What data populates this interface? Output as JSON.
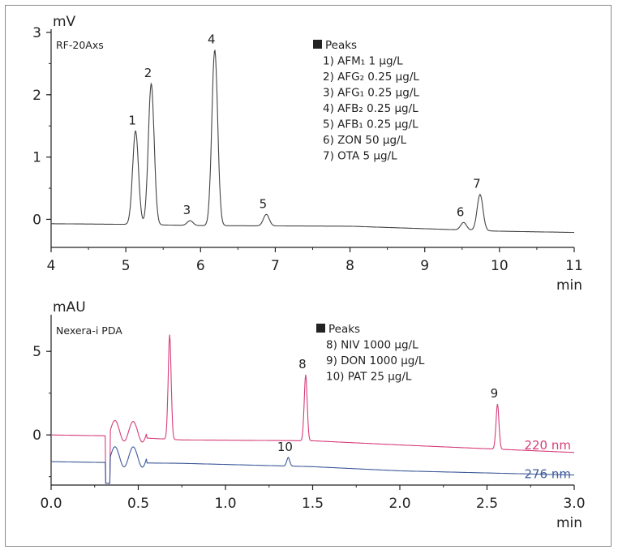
{
  "chart_data": [
    {
      "type": "line",
      "instrument_label": "RF-20Axs",
      "ylabel": "mV",
      "xlabel": "min",
      "xlim": [
        4,
        11
      ],
      "ylim": [
        -0.45,
        3
      ],
      "x_ticks": [
        "4",
        "5",
        "6",
        "7",
        "8",
        "9",
        "10",
        "11"
      ],
      "y_ticks": [
        "0",
        "1",
        "2",
        "3"
      ],
      "legend_title": "Peaks",
      "legend_position": "top-center",
      "legend": [
        "1) AFM₁ 1 µg/L",
        "2) AFG₂ 0.25 µg/L",
        "3) AFG₁ 0.25 µg/L",
        "4) AFB₂ 0.25 µg/L",
        "5) AFB₁ 0.25 µg/L",
        "6) ZON  50 µg/L",
        "7) OTA  5 µg/L"
      ],
      "series": [
        {
          "color": "#444444",
          "baseline": [
            [
              4.0,
              -0.07
            ],
            [
              5.0,
              -0.08
            ],
            [
              6.0,
              -0.1
            ],
            [
              8.0,
              -0.11
            ],
            [
              10.0,
              -0.19
            ],
            [
              11.0,
              -0.21
            ]
          ],
          "peaks": [
            {
              "label": "1",
              "x": 5.13,
              "y": 1.42
            },
            {
              "label": "2",
              "x": 5.34,
              "y": 2.18
            },
            {
              "label": "3",
              "x": 5.86,
              "y": -0.02
            },
            {
              "label": "4",
              "x": 6.19,
              "y": 2.72
            },
            {
              "label": "5",
              "x": 6.88,
              "y": 0.08
            },
            {
              "label": "6",
              "x": 9.52,
              "y": -0.05
            },
            {
              "label": "7",
              "x": 9.74,
              "y": 0.4
            }
          ]
        }
      ]
    },
    {
      "type": "line",
      "instrument_label": "Nexera-i PDA",
      "ylabel": "mAU",
      "xlabel": "min",
      "xlim": [
        0.0,
        3.0
      ],
      "ylim": [
        -3.0,
        7.0
      ],
      "x_ticks": [
        "0.0",
        "0.5",
        "1.0",
        "1.5",
        "2.0",
        "2.5",
        "3.0"
      ],
      "y_ticks": [
        "0",
        "5"
      ],
      "legend_title": "Peaks",
      "legend_position": "top-center",
      "legend": [
        "8) NIV   1000 µg/L",
        "9) DON  1000 µg/L",
        "10) PAT   25 µg/L"
      ],
      "series": [
        {
          "name": "220 nm",
          "color": "#d63d7a",
          "baseline": [
            [
              0.0,
              0.0
            ],
            [
              0.3,
              -0.05
            ],
            [
              0.75,
              -0.3
            ],
            [
              1.5,
              -0.35
            ],
            [
              2.0,
              -0.6
            ],
            [
              3.0,
              -1.05
            ]
          ],
          "peaks": [
            {
              "label": "",
              "x": 0.68,
              "y": 6.0
            },
            {
              "label": "8",
              "x": 1.46,
              "y": 3.6
            },
            {
              "label": "9",
              "x": 2.56,
              "y": 1.85
            }
          ]
        },
        {
          "name": "276 nm",
          "color": "#3d5a99",
          "baseline": [
            [
              0.0,
              -1.6
            ],
            [
              0.3,
              -1.65
            ],
            [
              0.75,
              -1.7
            ],
            [
              1.5,
              -1.9
            ],
            [
              2.0,
              -2.15
            ],
            [
              3.0,
              -2.4
            ]
          ],
          "peaks": [
            {
              "label": "10",
              "x": 1.36,
              "y": -1.35
            }
          ]
        }
      ]
    }
  ]
}
